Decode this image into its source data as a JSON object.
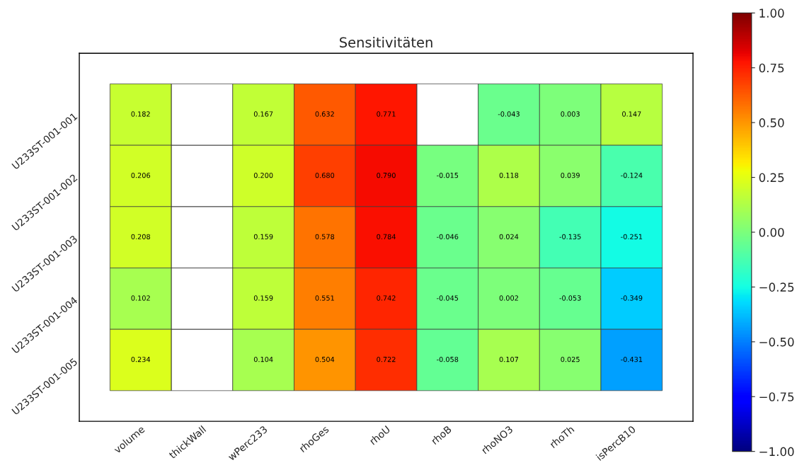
{
  "chart_data": {
    "type": "heatmap",
    "title": "Sensitivitäten",
    "categories": [
      "volume",
      "thickWall",
      "wPerc233",
      "rhoGes",
      "rhoU",
      "rhoB",
      "rhoNO3",
      "rhoTh",
      "isPercB10"
    ],
    "y_categories": [
      "U233ST-001-001",
      "U233ST-001-002",
      "U233ST-001-003",
      "U233ST-001-004",
      "U233ST-001-005"
    ],
    "cells": [
      [
        0.182,
        null,
        0.167,
        0.632,
        0.771,
        null,
        -0.043,
        0.003,
        0.147
      ],
      [
        0.206,
        null,
        0.2,
        0.68,
        0.79,
        -0.015,
        0.118,
        0.039,
        -0.124
      ],
      [
        0.208,
        null,
        0.159,
        0.578,
        0.784,
        -0.046,
        0.024,
        -0.135,
        -0.251
      ],
      [
        0.102,
        null,
        0.159,
        0.551,
        0.742,
        -0.045,
        0.002,
        -0.053,
        -0.349
      ],
      [
        0.234,
        null,
        0.104,
        0.504,
        0.722,
        -0.058,
        0.107,
        0.025,
        -0.431
      ]
    ],
    "cell_labels": [
      [
        "0.182",
        null,
        "0.167",
        "0.632",
        "0.771",
        null,
        "-0.043",
        "0.003",
        "0.147"
      ],
      [
        "0.206",
        null,
        "0.200",
        "0.680",
        "0.790",
        "-0.015",
        "0.118",
        "0.039",
        "-0.124"
      ],
      [
        "0.208",
        null,
        "0.159",
        "0.578",
        "0.784",
        "-0.046",
        "0.024",
        "-0.135",
        "-0.251"
      ],
      [
        "0.102",
        null,
        "0.159",
        "0.551",
        "0.742",
        "-0.045",
        "0.002",
        "-0.053",
        "-0.349"
      ],
      [
        "0.234",
        null,
        "0.104",
        "0.504",
        "0.722",
        "-0.058",
        "0.107",
        "0.025",
        "-0.431"
      ]
    ],
    "clim": [
      -1,
      1
    ],
    "cticks": [
      {
        "value": -1,
        "label": "−1.00"
      },
      {
        "value": -0.75,
        "label": "−0.75"
      },
      {
        "value": -0.5,
        "label": "−0.50"
      },
      {
        "value": -0.25,
        "label": "−0.25"
      },
      {
        "value": 0,
        "label": "0.00"
      },
      {
        "value": 0.25,
        "label": "0.25"
      },
      {
        "value": 0.5,
        "label": "0.50"
      },
      {
        "value": 0.75,
        "label": "0.75"
      },
      {
        "value": 1,
        "label": "1.00"
      }
    ]
  }
}
